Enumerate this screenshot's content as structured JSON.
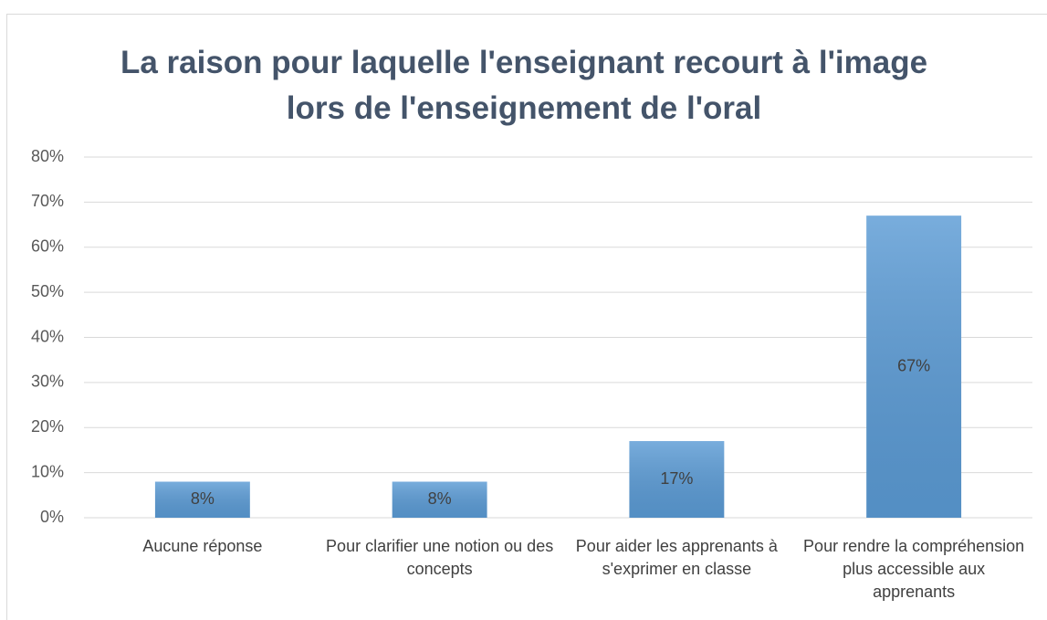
{
  "chart_data": {
    "type": "bar",
    "title": "La raison pour laquelle l'enseignant recourt à l'image lors de l'enseignement de l'oral",
    "categories": [
      "Aucune réponse",
      "Pour clarifier une notion ou des concepts",
      "Pour aider les apprenants à s'exprimer en classe",
      "Pour rendre la compréhension plus accessible aux apprenants"
    ],
    "values": [
      8,
      8,
      17,
      67
    ],
    "value_labels": [
      "8%",
      "8%",
      "17%",
      "67%"
    ],
    "color": "#5b9bd5",
    "ylim": [
      0,
      80
    ],
    "yticks": [
      {
        "value": 0,
        "label": "0%"
      },
      {
        "value": 10,
        "label": "10%"
      },
      {
        "value": 20,
        "label": "20%"
      },
      {
        "value": 30,
        "label": "30%"
      },
      {
        "value": 40,
        "label": "40%"
      },
      {
        "value": 50,
        "label": "50%"
      },
      {
        "value": 60,
        "label": "60%"
      },
      {
        "value": 70,
        "label": "70%"
      },
      {
        "value": 80,
        "label": "80%"
      }
    ],
    "grid": true
  }
}
